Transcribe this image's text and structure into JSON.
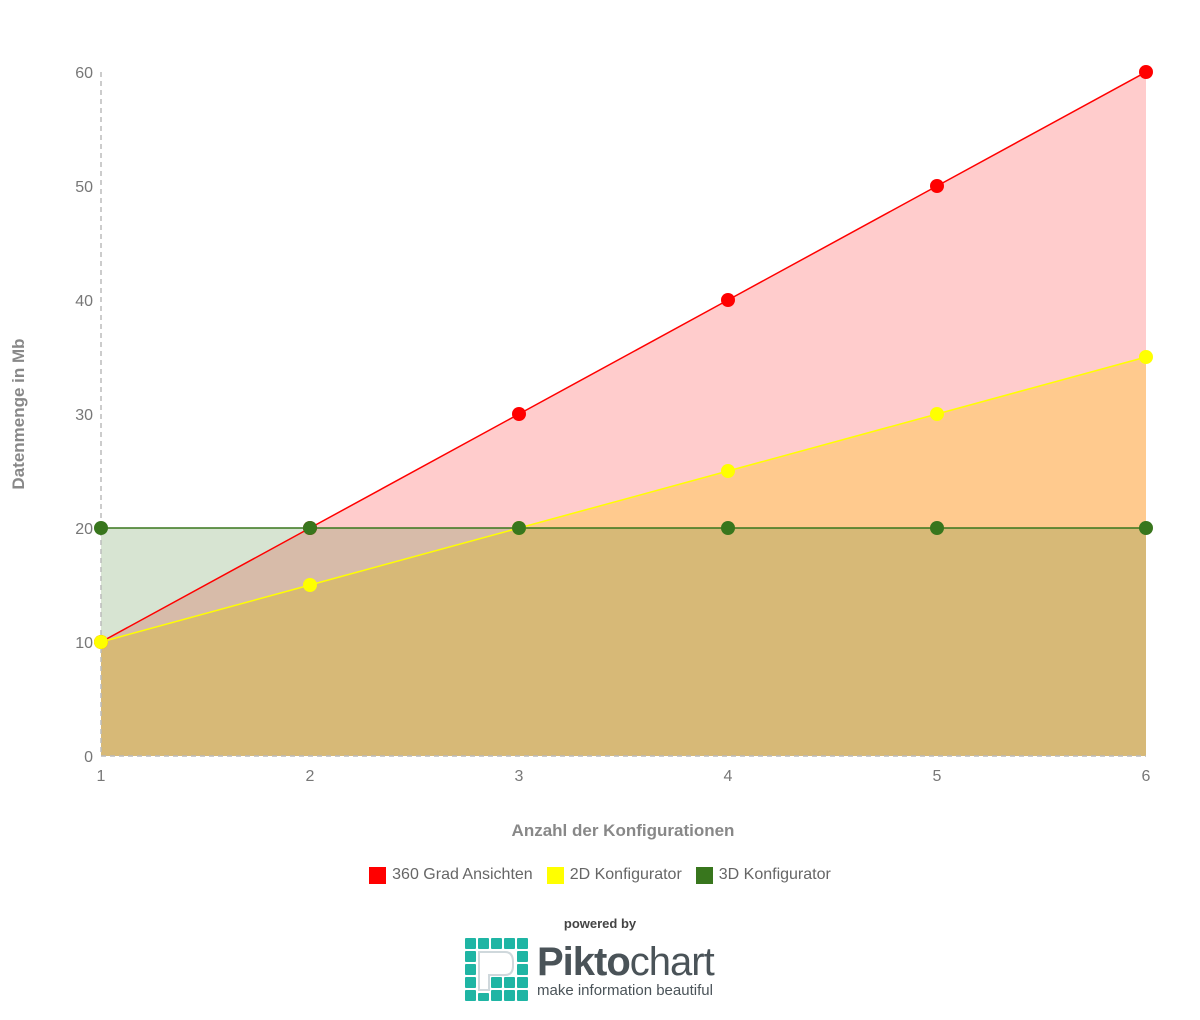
{
  "chart_data": {
    "type": "area",
    "title": "",
    "xlabel": "Anzahl der Konfigurationen",
    "ylabel": "Datenmenge in Mb",
    "x": [
      1,
      2,
      3,
      4,
      5,
      6
    ],
    "xlim": [
      1,
      6
    ],
    "ylim": [
      0,
      60
    ],
    "yticks": [
      0,
      10,
      20,
      30,
      40,
      50,
      60
    ],
    "grid": false,
    "legend_position": "bottom",
    "series": [
      {
        "name": "360 Grad Ansichten",
        "color": "#ff0000",
        "values": [
          10,
          20,
          30,
          40,
          50,
          60
        ]
      },
      {
        "name": "2D Konfigurator",
        "color": "#ffff00",
        "values": [
          10,
          15,
          20,
          25,
          30,
          35
        ]
      },
      {
        "name": "3D Konfigurator",
        "color": "#38761d",
        "values": [
          20,
          20,
          20,
          20,
          20,
          20
        ]
      }
    ]
  },
  "branding": {
    "powered_by": "powered by",
    "brand_bold": "Pikto",
    "brand_light": "chart",
    "tagline": "make information beautiful",
    "accent": "#1fb5a4"
  }
}
